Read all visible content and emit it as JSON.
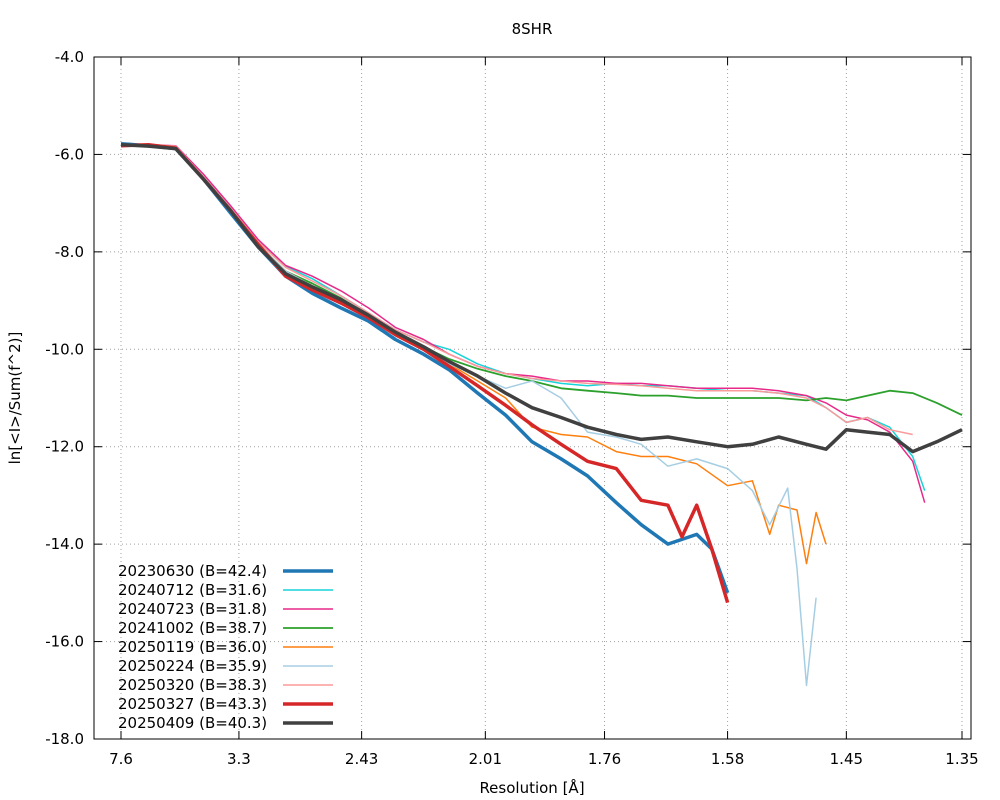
{
  "chart_data": {
    "type": "line",
    "title": "8SHR",
    "xlabel": "Resolution [Å]",
    "ylabel": "ln[<I>/Sum(f^2)]",
    "x_scale": "inverse-square (1/d^2)",
    "xlim": [
      7.6,
      1.35
    ],
    "ylim": [
      -18.0,
      -4.0
    ],
    "x_ticks": [
      {
        "value": 7.6,
        "label": "7.6"
      },
      {
        "value": 3.3,
        "label": "3.3"
      },
      {
        "value": 2.43,
        "label": "2.43"
      },
      {
        "value": 2.01,
        "label": "2.01"
      },
      {
        "value": 1.76,
        "label": "1.76"
      },
      {
        "value": 1.58,
        "label": "1.58"
      },
      {
        "value": 1.45,
        "label": "1.45"
      },
      {
        "value": 1.35,
        "label": "1.35"
      }
    ],
    "y_ticks": [
      {
        "value": -4.0,
        "label": "-4.0"
      },
      {
        "value": -6.0,
        "label": "-6.0"
      },
      {
        "value": -8.0,
        "label": "-8.0"
      },
      {
        "value": -10.0,
        "label": "-10.0"
      },
      {
        "value": -12.0,
        "label": "-12.0"
      },
      {
        "value": -14.0,
        "label": "-14.0"
      },
      {
        "value": -16.0,
        "label": "-16.0"
      },
      {
        "value": -18.0,
        "label": "-18.0"
      }
    ],
    "grid": true,
    "legend_position": "bottom-left",
    "series": [
      {
        "name": "20230630 (B=42.4)",
        "color": "#1f77b4",
        "width": 3.5,
        "x": [
          7.6,
          5.37,
          4.39,
          3.8,
          3.4,
          3.1,
          2.87,
          2.69,
          2.53,
          2.4,
          2.29,
          2.19,
          2.11,
          2.03,
          1.96,
          1.9,
          1.84,
          1.79,
          1.74,
          1.7,
          1.66,
          1.62,
          1.6,
          1.58
        ],
        "y": [
          -5.78,
          -5.82,
          -5.88,
          -6.5,
          -7.2,
          -7.9,
          -8.5,
          -8.85,
          -9.15,
          -9.42,
          -9.8,
          -10.1,
          -10.42,
          -10.9,
          -11.35,
          -11.9,
          -12.25,
          -12.6,
          -13.15,
          -13.6,
          -14.0,
          -13.8,
          -14.1,
          -15.0
        ]
      },
      {
        "name": "20240712 (B=31.6)",
        "color": "#17d4d8",
        "width": 1.5,
        "x": [
          7.6,
          5.37,
          4.39,
          3.8,
          3.4,
          3.1,
          2.87,
          2.69,
          2.53,
          2.4,
          2.29,
          2.19,
          2.11,
          2.03,
          1.96,
          1.9,
          1.84,
          1.79,
          1.74,
          1.7,
          1.66,
          1.62,
          1.58,
          1.55,
          1.52,
          1.49,
          1.47,
          1.45,
          1.43,
          1.41,
          1.39,
          1.38
        ],
        "y": [
          -5.8,
          -5.8,
          -5.85,
          -6.45,
          -7.1,
          -7.8,
          -8.3,
          -8.55,
          -8.9,
          -9.25,
          -9.6,
          -9.85,
          -10.0,
          -10.3,
          -10.5,
          -10.6,
          -10.7,
          -10.75,
          -10.7,
          -10.75,
          -10.75,
          -10.8,
          -10.85,
          -10.85,
          -10.9,
          -10.95,
          -11.2,
          -11.5,
          -11.4,
          -11.6,
          -12.2,
          -12.9
        ]
      },
      {
        "name": "20240723 (B=31.8)",
        "color": "#e7298a",
        "width": 1.5,
        "x": [
          7.6,
          5.37,
          4.39,
          3.8,
          3.4,
          3.1,
          2.87,
          2.69,
          2.53,
          2.4,
          2.29,
          2.19,
          2.11,
          2.03,
          1.96,
          1.9,
          1.84,
          1.79,
          1.74,
          1.7,
          1.66,
          1.62,
          1.58,
          1.55,
          1.52,
          1.49,
          1.47,
          1.45,
          1.43,
          1.41,
          1.39,
          1.38
        ],
        "y": [
          -5.82,
          -5.8,
          -5.82,
          -6.4,
          -7.05,
          -7.75,
          -8.28,
          -8.5,
          -8.8,
          -9.15,
          -9.55,
          -9.8,
          -10.1,
          -10.35,
          -10.5,
          -10.55,
          -10.65,
          -10.65,
          -10.7,
          -10.7,
          -10.75,
          -10.8,
          -10.8,
          -10.8,
          -10.85,
          -10.95,
          -11.1,
          -11.35,
          -11.45,
          -11.7,
          -12.3,
          -13.15
        ]
      },
      {
        "name": "20241002 (B=38.7)",
        "color": "#2ca02c",
        "width": 1.8,
        "x": [
          7.6,
          5.37,
          4.39,
          3.8,
          3.4,
          3.1,
          2.87,
          2.69,
          2.53,
          2.4,
          2.29,
          2.19,
          2.11,
          2.03,
          1.96,
          1.9,
          1.84,
          1.79,
          1.74,
          1.7,
          1.66,
          1.62,
          1.58,
          1.55,
          1.52,
          1.49,
          1.47,
          1.45,
          1.43,
          1.41,
          1.39,
          1.37,
          1.35
        ],
        "y": [
          -5.8,
          -5.82,
          -5.85,
          -6.5,
          -7.15,
          -7.85,
          -8.4,
          -8.65,
          -8.95,
          -9.3,
          -9.65,
          -9.95,
          -10.2,
          -10.4,
          -10.55,
          -10.65,
          -10.8,
          -10.85,
          -10.9,
          -10.95,
          -10.95,
          -11.0,
          -11.0,
          -11.0,
          -11.0,
          -11.05,
          -11.0,
          -11.05,
          -10.95,
          -10.85,
          -10.9,
          -11.1,
          -11.35
        ]
      },
      {
        "name": "20250119 (B=36.0)",
        "color": "#ff7f0e",
        "width": 1.5,
        "x": [
          7.6,
          5.37,
          4.39,
          3.8,
          3.4,
          3.1,
          2.87,
          2.69,
          2.53,
          2.4,
          2.29,
          2.19,
          2.11,
          2.03,
          1.96,
          1.9,
          1.84,
          1.79,
          1.74,
          1.7,
          1.66,
          1.62,
          1.58,
          1.55,
          1.53,
          1.52,
          1.5,
          1.49,
          1.48,
          1.47
        ],
        "y": [
          -5.8,
          -5.82,
          -5.87,
          -6.5,
          -7.15,
          -7.85,
          -8.4,
          -8.7,
          -9.0,
          -9.35,
          -9.7,
          -10.0,
          -10.3,
          -10.65,
          -11.0,
          -11.6,
          -11.75,
          -11.8,
          -12.1,
          -12.2,
          -12.2,
          -12.35,
          -12.8,
          -12.7,
          -13.8,
          -13.2,
          -13.3,
          -14.4,
          -13.35,
          -14.0
        ]
      },
      {
        "name": "20250224 (B=35.9)",
        "color": "#a6cee3",
        "width": 1.5,
        "x": [
          7.6,
          5.37,
          4.39,
          3.8,
          3.4,
          3.1,
          2.87,
          2.69,
          2.53,
          2.4,
          2.29,
          2.19,
          2.11,
          2.03,
          1.96,
          1.9,
          1.84,
          1.79,
          1.74,
          1.7,
          1.66,
          1.62,
          1.58,
          1.55,
          1.53,
          1.51,
          1.5,
          1.49,
          1.48
        ],
        "y": [
          -5.8,
          -5.82,
          -5.87,
          -6.5,
          -7.15,
          -7.85,
          -8.4,
          -8.7,
          -9.0,
          -9.35,
          -9.7,
          -10.0,
          -10.3,
          -10.55,
          -10.8,
          -10.65,
          -11.0,
          -11.7,
          -11.8,
          -11.95,
          -12.4,
          -12.25,
          -12.45,
          -12.9,
          -13.6,
          -12.85,
          -14.5,
          -16.9,
          -15.1
        ]
      },
      {
        "name": "20250320 (B=38.3)",
        "color": "#fb9a99",
        "width": 1.5,
        "x": [
          7.6,
          5.37,
          4.39,
          3.8,
          3.4,
          3.1,
          2.87,
          2.69,
          2.53,
          2.4,
          2.29,
          2.19,
          2.11,
          2.03,
          1.96,
          1.9,
          1.84,
          1.79,
          1.74,
          1.7,
          1.66,
          1.62,
          1.58,
          1.55,
          1.52,
          1.49,
          1.47,
          1.45,
          1.43,
          1.41,
          1.39
        ],
        "y": [
          -5.82,
          -5.8,
          -5.83,
          -6.45,
          -7.1,
          -7.8,
          -8.32,
          -8.6,
          -8.9,
          -9.25,
          -9.6,
          -9.85,
          -10.1,
          -10.35,
          -10.5,
          -10.6,
          -10.65,
          -10.7,
          -10.72,
          -10.75,
          -10.8,
          -10.85,
          -10.85,
          -10.85,
          -10.9,
          -11.0,
          -11.2,
          -11.5,
          -11.4,
          -11.65,
          -11.75
        ]
      },
      {
        "name": "20250327 (B=43.3)",
        "color": "#d62728",
        "width": 3.5,
        "x": [
          7.6,
          5.37,
          4.39,
          3.8,
          3.4,
          3.1,
          2.87,
          2.69,
          2.53,
          2.4,
          2.29,
          2.19,
          2.11,
          2.03,
          1.96,
          1.9,
          1.84,
          1.79,
          1.74,
          1.7,
          1.66,
          1.64,
          1.62,
          1.6,
          1.58
        ],
        "y": [
          -5.82,
          -5.8,
          -5.87,
          -6.5,
          -7.15,
          -7.85,
          -8.5,
          -8.78,
          -9.05,
          -9.35,
          -9.7,
          -10.0,
          -10.35,
          -10.75,
          -11.15,
          -11.55,
          -11.95,
          -12.3,
          -12.45,
          -13.1,
          -13.2,
          -13.85,
          -13.2,
          -14.1,
          -15.2
        ]
      },
      {
        "name": "20250409 (B=40.3)",
        "color": "#404040",
        "width": 3.5,
        "x": [
          7.6,
          5.37,
          4.39,
          3.8,
          3.4,
          3.1,
          2.87,
          2.69,
          2.53,
          2.4,
          2.29,
          2.19,
          2.11,
          2.03,
          1.96,
          1.9,
          1.84,
          1.79,
          1.74,
          1.7,
          1.66,
          1.62,
          1.58,
          1.55,
          1.52,
          1.49,
          1.47,
          1.45,
          1.43,
          1.41,
          1.39,
          1.37,
          1.35
        ],
        "y": [
          -5.8,
          -5.83,
          -5.88,
          -6.5,
          -7.15,
          -7.9,
          -8.45,
          -8.72,
          -8.98,
          -9.3,
          -9.65,
          -9.95,
          -10.25,
          -10.55,
          -10.9,
          -11.2,
          -11.4,
          -11.6,
          -11.75,
          -11.85,
          -11.8,
          -11.9,
          -12.0,
          -11.95,
          -11.8,
          -11.95,
          -12.05,
          -11.65,
          -11.7,
          -11.75,
          -12.1,
          -11.9,
          -11.65
        ]
      }
    ]
  }
}
